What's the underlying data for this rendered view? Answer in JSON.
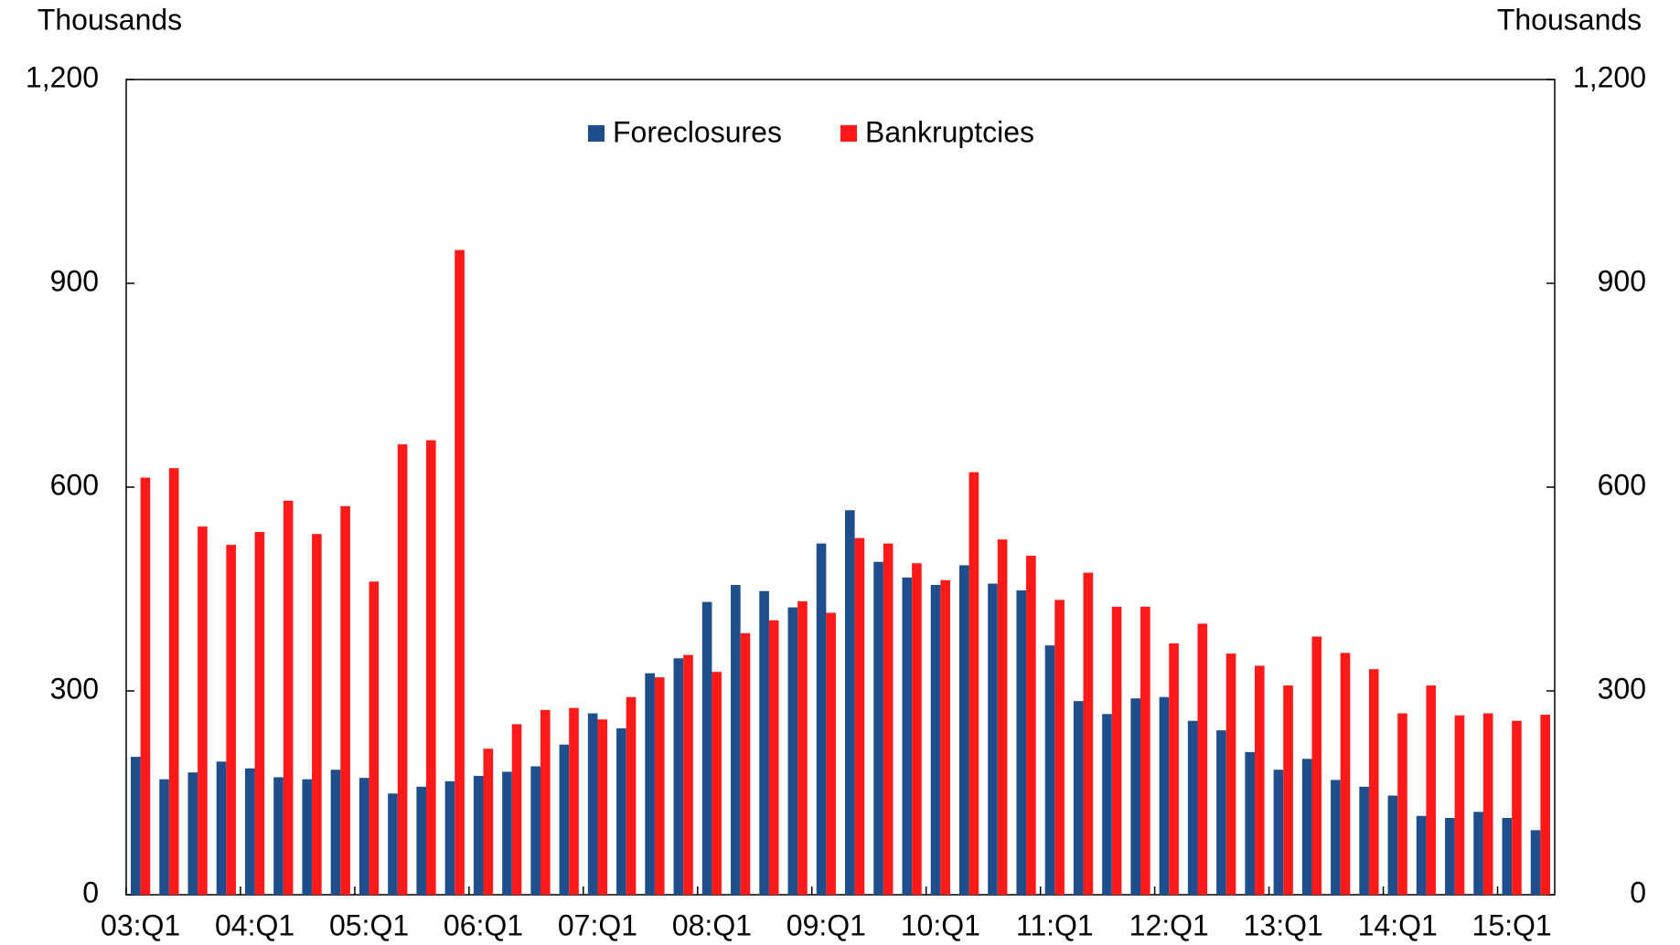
{
  "chart_data": {
    "type": "bar",
    "y_label": "Thousands",
    "y2_label": "Thousands",
    "categories": [
      "03:Q1",
      null,
      null,
      null,
      "04:Q1",
      null,
      null,
      null,
      "05:Q1",
      null,
      null,
      null,
      "06:Q1",
      null,
      null,
      null,
      "07:Q1",
      null,
      null,
      null,
      "08:Q1",
      null,
      null,
      null,
      "09:Q1",
      null,
      null,
      null,
      "10:Q1",
      null,
      null,
      null,
      "11:Q1",
      null,
      null,
      null,
      "12:Q1",
      null,
      null,
      null,
      "13:Q1",
      null,
      null,
      null,
      "14:Q1",
      null,
      null,
      null,
      "15:Q1",
      null
    ],
    "series": [
      {
        "name": "Foreclosures",
        "color": "#1f4e8c",
        "values": [
          203,
          170,
          180,
          196,
          186,
          173,
          170,
          184,
          172,
          149,
          159,
          167,
          175,
          181,
          189,
          221,
          267,
          245,
          326,
          348,
          431,
          456,
          447,
          423,
          517,
          566,
          490,
          467,
          456,
          485,
          458,
          448,
          367,
          285,
          266,
          289,
          291,
          256,
          242,
          210,
          184,
          200,
          169,
          159,
          146,
          116,
          113,
          122,
          113,
          95
        ]
      },
      {
        "name": "Bankruptcies",
        "color": "#ff1a1a",
        "values": [
          614,
          628,
          542,
          515,
          534,
          580,
          531,
          572,
          461,
          663,
          669,
          949,
          215,
          251,
          272,
          275,
          258,
          291,
          320,
          353,
          328,
          385,
          404,
          432,
          415,
          525,
          517,
          488,
          463,
          622,
          523,
          499,
          434,
          474,
          424,
          424,
          370,
          399,
          355,
          337,
          308,
          380,
          356,
          332,
          267,
          308,
          264,
          267,
          256,
          265
        ]
      }
    ],
    "ylim": [
      0,
      1200
    ],
    "yticks": [
      0,
      300,
      600,
      900,
      {
        "value": 1200,
        "label": "1,200"
      }
    ],
    "y2lim": [
      0,
      1200
    ],
    "y2ticks": [
      0,
      300,
      600,
      900,
      {
        "value": 1200,
        "label": "1,200"
      }
    ],
    "legend": "top",
    "grid": false
  }
}
